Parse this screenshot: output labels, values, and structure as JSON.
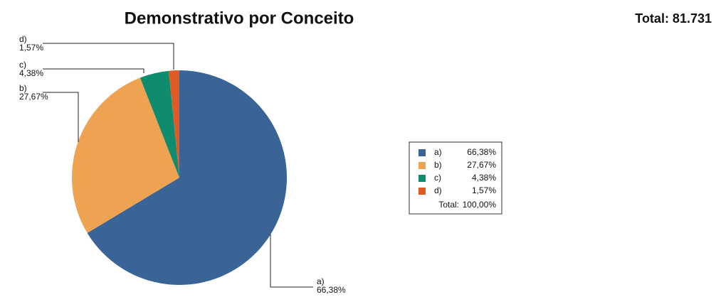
{
  "chart_data": {
    "type": "pie",
    "title": "Demonstrativo por Conceito",
    "total_text": "Total: 81.731",
    "categories": [
      "a)",
      "b)",
      "c)",
      "d)"
    ],
    "values": [
      66.38,
      27.67,
      4.38,
      1.57
    ],
    "value_labels": [
      "66,38%",
      "27,67%",
      "4,38%",
      "1,57%"
    ],
    "colors": [
      "#3a6396",
      "#eea353",
      "#0f8c6d",
      "#e05a25"
    ],
    "legend": true,
    "legend_total_label": "Total:",
    "legend_total_value": "100,00%"
  }
}
